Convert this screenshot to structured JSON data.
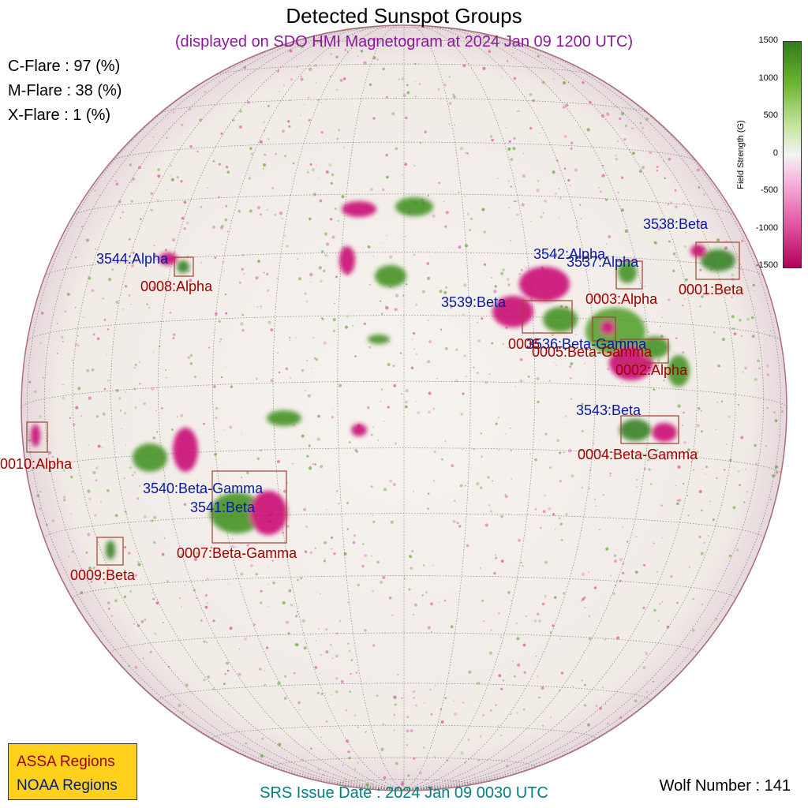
{
  "title": "Detected Sunspot Groups",
  "subtitle": "(displayed on SDO HMI Magnetogram at 2024 Jan 09 1200 UTC)",
  "flares": [
    {
      "label": "C-Flare : 97 (%)"
    },
    {
      "label": "M-Flare : 38 (%)"
    },
    {
      "label": "X-Flare :  1 (%)"
    }
  ],
  "colorbar": {
    "label": "Field Strength (G)",
    "ticks": [
      "1500",
      "1000",
      "500",
      "0",
      "-500",
      "-1000",
      "-1500"
    ],
    "colors": {
      "positive": "#2f7d1a",
      "negative": "#b0005a",
      "zero": "#f4f4f4"
    }
  },
  "noaa_regions": [
    {
      "label": "3544:Alpha"
    },
    {
      "label": "3542:Alpha"
    },
    {
      "label": "3537:Alpha"
    },
    {
      "label": "3538:Beta"
    },
    {
      "label": "3539:Beta"
    },
    {
      "label": "3536:Beta-Gamma"
    },
    {
      "label": "3543:Beta"
    },
    {
      "label": "3540:Beta-Gamma"
    },
    {
      "label": "3541:Beta"
    }
  ],
  "assa_regions": [
    {
      "label": "0008:Alpha"
    },
    {
      "label": "0003:Alpha"
    },
    {
      "label": "0001:Beta"
    },
    {
      "label": "0006"
    },
    {
      "label": "0005:Beta-Gamma"
    },
    {
      "label": "0002:Alpha"
    },
    {
      "label": "0004:Beta-Gamma"
    },
    {
      "label": "0010:Alpha"
    },
    {
      "label": "0007:Beta-Gamma"
    },
    {
      "label": "0009:Beta"
    }
  ],
  "legend": {
    "assa": "ASSA Regions",
    "noaa": "NOAA Regions",
    "colors": {
      "background": "#ffd11a",
      "assa": "#a00000",
      "noaa": "#001a8a"
    }
  },
  "srs_issue": "SRS Issue Date : 2024 Jan 09 0030 UTC",
  "wolf_number": "Wolf Number : 141"
}
